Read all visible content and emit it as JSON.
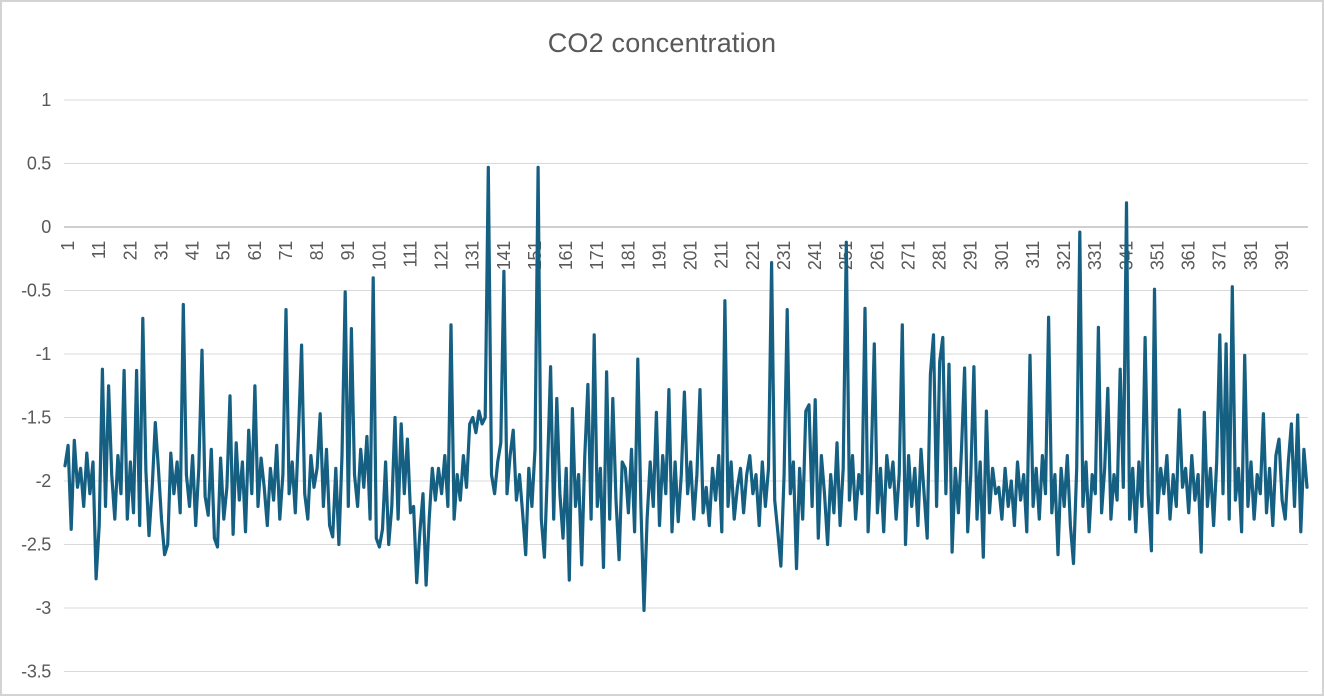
{
  "colors": {
    "line": "#156082",
    "gridline": "#D9D9D9",
    "axis_line": "#BFBFBF",
    "tick_label": "#595959",
    "title": "#595959",
    "border": "#D3D3D3",
    "background": "#FFFFFF"
  },
  "chart_data": {
    "type": "line",
    "title": "CO2 concentration",
    "xlabel": "",
    "ylabel": "",
    "grid": true,
    "legend": "none",
    "ylim": [
      -3.5,
      1
    ],
    "y_ticks": [
      1,
      0.5,
      0,
      -0.5,
      -1,
      -1.5,
      -2,
      -2.5,
      -3,
      -3.5
    ],
    "y_tick_labels": [
      "1",
      "0.5",
      "0",
      "-0.5",
      "-1",
      "-1.5",
      "-2",
      "-2.5",
      "-3",
      "-3.5"
    ],
    "x_tick_step": 10,
    "x_tick_labels": [
      "1",
      "11",
      "21",
      "31",
      "41",
      "51",
      "61",
      "71",
      "81",
      "91",
      "101",
      "111",
      "121",
      "131",
      "141",
      "151",
      "161",
      "171",
      "181",
      "191",
      "201",
      "211",
      "221",
      "231",
      "241",
      "251",
      "261",
      "271",
      "281",
      "291",
      "301",
      "311",
      "321",
      "331",
      "341",
      "351",
      "361",
      "371",
      "381",
      "391"
    ],
    "axis_crosses_at": 0,
    "series": [
      {
        "name": "CO2 concentration",
        "color": "#156082",
        "values": [
          -1.88,
          -1.72,
          -2.38,
          -1.68,
          -2.05,
          -1.9,
          -2.2,
          -1.78,
          -2.1,
          -1.85,
          -2.77,
          -2.35,
          -1.12,
          -2.2,
          -1.25,
          -1.95,
          -2.3,
          -1.8,
          -2.1,
          -1.13,
          -2.3,
          -1.85,
          -2.25,
          -1.13,
          -2.35,
          -0.72,
          -1.92,
          -2.43,
          -2.05,
          -1.54,
          -1.9,
          -2.3,
          -2.58,
          -2.5,
          -1.78,
          -2.1,
          -1.85,
          -2.25,
          -0.61,
          -1.95,
          -2.2,
          -1.8,
          -2.35,
          -1.9,
          -0.97,
          -2.12,
          -2.27,
          -1.75,
          -2.45,
          -2.52,
          -1.82,
          -2.3,
          -2.05,
          -1.33,
          -2.42,
          -1.7,
          -2.15,
          -1.85,
          -2.4,
          -1.6,
          -2.1,
          -1.25,
          -2.2,
          -1.82,
          -2.05,
          -2.35,
          -1.9,
          -2.15,
          -1.72,
          -2.3,
          -1.95,
          -0.65,
          -2.1,
          -1.85,
          -2.25,
          -1.62,
          -0.93,
          -2.1,
          -2.3,
          -1.8,
          -2.05,
          -1.9,
          -1.47,
          -2.2,
          -1.75,
          -2.35,
          -2.44,
          -1.9,
          -2.5,
          -1.8,
          -0.51,
          -2.2,
          -0.8,
          -1.95,
          -2.2,
          -1.75,
          -2.05,
          -1.65,
          -2.3,
          -0.4,
          -2.45,
          -2.52,
          -2.38,
          -1.85,
          -2.5,
          -2.2,
          -1.5,
          -2.3,
          -1.55,
          -2.1,
          -1.67,
          -2.25,
          -2.2,
          -2.8,
          -2.4,
          -2.1,
          -2.82,
          -2.3,
          -1.9,
          -2.15,
          -1.9,
          -2.1,
          -1.8,
          -2.2,
          -0.77,
          -2.3,
          -1.95,
          -2.15,
          -1.8,
          -2.05,
          -1.55,
          -1.5,
          -1.62,
          -1.45,
          -1.55,
          -1.5,
          0.47,
          -1.95,
          -2.1,
          -1.85,
          -1.7,
          -0.35,
          -2.1,
          -1.8,
          -1.6,
          -2.15,
          -1.95,
          -2.25,
          -2.58,
          -1.9,
          -2.2,
          -1.75,
          0.47,
          -2.3,
          -2.6,
          -1.9,
          -1.1,
          -2.3,
          -1.35,
          -2.1,
          -2.45,
          -1.9,
          -2.78,
          -1.43,
          -2.2,
          -1.95,
          -2.66,
          -1.8,
          -1.24,
          -2.3,
          -0.85,
          -2.2,
          -1.9,
          -2.68,
          -1.14,
          -2.3,
          -1.35,
          -2.15,
          -2.62,
          -1.85,
          -1.9,
          -2.25,
          -1.75,
          -2.4,
          -1.04,
          -2.2,
          -3.02,
          -2.3,
          -1.85,
          -2.2,
          -1.46,
          -2.35,
          -1.8,
          -2.1,
          -1.28,
          -2.4,
          -1.85,
          -2.32,
          -1.95,
          -1.3,
          -2.1,
          -1.85,
          -2.3,
          -1.95,
          -1.28,
          -2.25,
          -2.05,
          -2.35,
          -1.9,
          -2.15,
          -1.8,
          -2.4,
          -0.58,
          -2.2,
          -1.85,
          -2.3,
          -2.05,
          -1.9,
          -2.25,
          -1.95,
          -1.8,
          -2.1,
          -1.95,
          -2.35,
          -1.85,
          -2.2,
          -1.9,
          -0.28,
          -2.15,
          -2.4,
          -2.67,
          -1.95,
          -0.65,
          -2.1,
          -1.85,
          -2.69,
          -1.9,
          -2.3,
          -1.45,
          -1.4,
          -2.2,
          -1.36,
          -2.45,
          -1.8,
          -2.1,
          -2.5,
          -1.95,
          -2.25,
          -1.7,
          -2.35,
          -1.9,
          -0.12,
          -2.15,
          -1.8,
          -2.3,
          -1.95,
          -2.1,
          -0.64,
          -2.4,
          -1.85,
          -0.92,
          -2.25,
          -1.9,
          -2.4,
          -1.8,
          -2.05,
          -1.85,
          -2.3,
          -1.95,
          -0.77,
          -2.5,
          -1.8,
          -2.2,
          -1.9,
          -2.35,
          -1.75,
          -2.1,
          -2.45,
          -1.16,
          -0.85,
          -2.2,
          -1.06,
          -0.87,
          -2.1,
          -1.08,
          -2.56,
          -1.9,
          -2.25,
          -1.75,
          -1.11,
          -2.4,
          -1.95,
          -1.1,
          -2.3,
          -1.85,
          -2.6,
          -1.45,
          -2.25,
          -1.9,
          -2.1,
          -2.05,
          -2.3,
          -1.9,
          -2.2,
          -2.0,
          -2.35,
          -1.85,
          -2.15,
          -1.95,
          -2.4,
          -1.01,
          -2.2,
          -1.9,
          -2.3,
          -1.8,
          -2.1,
          -0.71,
          -2.25,
          -1.95,
          -2.58,
          -1.9,
          -2.2,
          -1.8,
          -2.35,
          -2.65,
          -1.9,
          -0.04,
          -2.2,
          -1.85,
          -2.4,
          -1.95,
          -2.1,
          -0.79,
          -2.25,
          -1.9,
          -1.27,
          -2.3,
          -1.95,
          -2.15,
          -1.12,
          -2.05,
          0.19,
          -2.3,
          -1.9,
          -2.4,
          -1.85,
          -2.2,
          -0.87,
          -2.1,
          -2.55,
          -0.49,
          -2.25,
          -1.9,
          -2.1,
          -1.8,
          -2.3,
          -1.95,
          -2.2,
          -1.44,
          -2.05,
          -1.9,
          -2.25,
          -1.8,
          -2.15,
          -1.95,
          -2.56,
          -1.46,
          -2.2,
          -1.9,
          -2.35,
          -1.85,
          -0.85,
          -2.1,
          -0.92,
          -2.3,
          -0.47,
          -2.15,
          -1.9,
          -2.4,
          -1.01,
          -2.2,
          -1.85,
          -2.3,
          -1.95,
          -2.1,
          -1.47,
          -2.25,
          -1.9,
          -2.35,
          -1.8,
          -1.67,
          -2.15,
          -2.3,
          -1.85,
          -1.55,
          -2.2,
          -1.48,
          -2.4,
          -1.75,
          -2.05
        ]
      }
    ]
  }
}
